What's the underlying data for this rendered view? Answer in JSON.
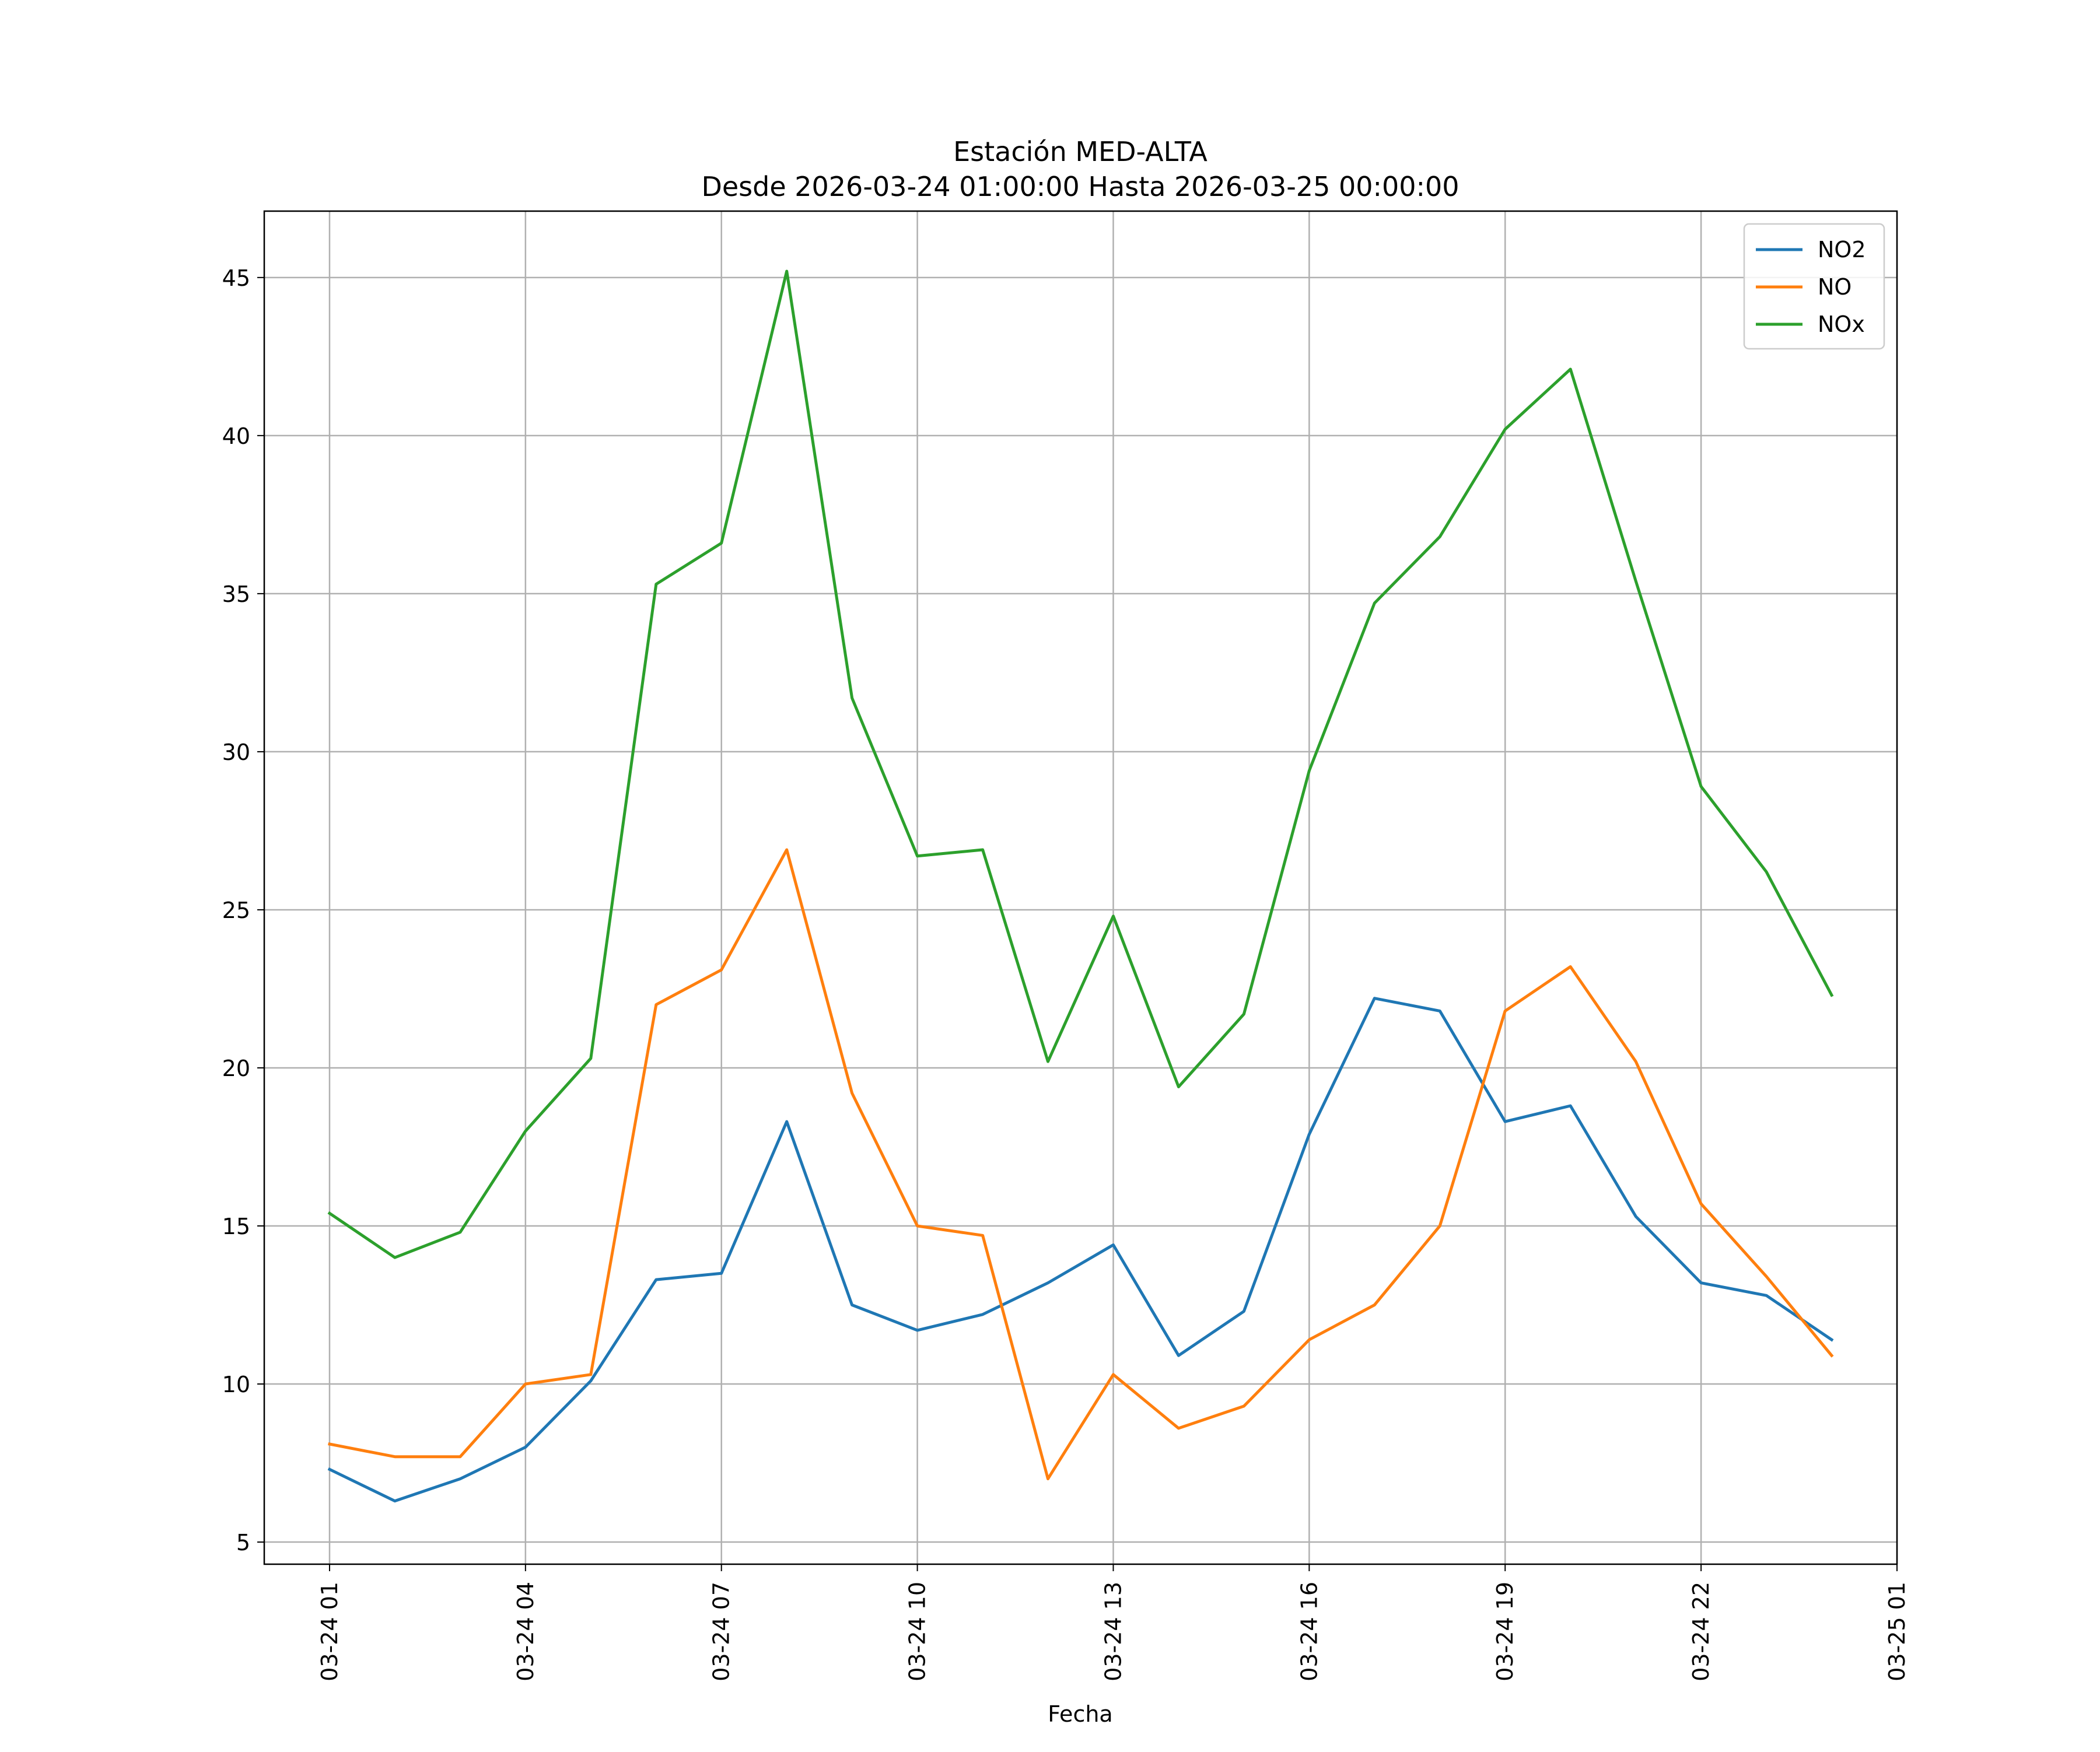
{
  "chart_data": {
    "type": "line",
    "title": "Estación MED-ALTA",
    "subtitle": "Desde 2026-03-24 01:00:00 Hasta 2026-03-25 00:00:00",
    "xlabel": "Fecha",
    "ylabel": "",
    "x": [
      "2026-03-24 01:00",
      "2026-03-24 02:00",
      "2026-03-24 03:00",
      "2026-03-24 04:00",
      "2026-03-24 05:00",
      "2026-03-24 06:00",
      "2026-03-24 07:00",
      "2026-03-24 08:00",
      "2026-03-24 09:00",
      "2026-03-24 10:00",
      "2026-03-24 11:00",
      "2026-03-24 12:00",
      "2026-03-24 13:00",
      "2026-03-24 14:00",
      "2026-03-24 15:00",
      "2026-03-24 16:00",
      "2026-03-24 17:00",
      "2026-03-24 18:00",
      "2026-03-24 19:00",
      "2026-03-24 20:00",
      "2026-03-24 21:00",
      "2026-03-24 22:00",
      "2026-03-24 23:00",
      "2026-03-25 00:00"
    ],
    "series": [
      {
        "name": "NO2",
        "color": "#1f77b4",
        "values": [
          7.3,
          6.3,
          7.0,
          8.0,
          10.1,
          13.3,
          13.5,
          18.3,
          12.5,
          11.7,
          12.2,
          13.2,
          14.4,
          10.9,
          12.3,
          17.9,
          22.2,
          21.8,
          18.3,
          18.8,
          15.3,
          13.2,
          12.8,
          11.4
        ]
      },
      {
        "name": "NO",
        "color": "#ff7f0e",
        "values": [
          8.1,
          7.7,
          7.7,
          10.0,
          10.3,
          22.0,
          23.1,
          26.9,
          19.2,
          15.0,
          14.7,
          7.0,
          10.3,
          8.6,
          9.3,
          11.4,
          12.5,
          15.0,
          21.8,
          23.2,
          20.2,
          15.7,
          13.4,
          10.9
        ]
      },
      {
        "name": "NOx",
        "color": "#2ca02c",
        "values": [
          15.4,
          14.0,
          14.8,
          18.0,
          20.3,
          35.3,
          36.6,
          45.2,
          31.7,
          26.7,
          26.9,
          20.2,
          24.8,
          19.4,
          21.7,
          29.4,
          34.7,
          36.8,
          40.2,
          42.1,
          35.4,
          28.9,
          26.2,
          22.3
        ]
      }
    ],
    "xticks": [
      "03-24 01",
      "03-24 04",
      "03-24 07",
      "03-24 10",
      "03-24 13",
      "03-24 16",
      "03-24 19",
      "03-24 22",
      "03-25 01"
    ],
    "yticks": [
      "5",
      "10",
      "15",
      "20",
      "25",
      "30",
      "35",
      "40",
      "45"
    ],
    "ylim": [
      4.3,
      47.1
    ],
    "xlim": [
      "2026-03-24 00:00",
      "2026-03-25 01:00"
    ],
    "grid": true,
    "legend": "top-right"
  }
}
